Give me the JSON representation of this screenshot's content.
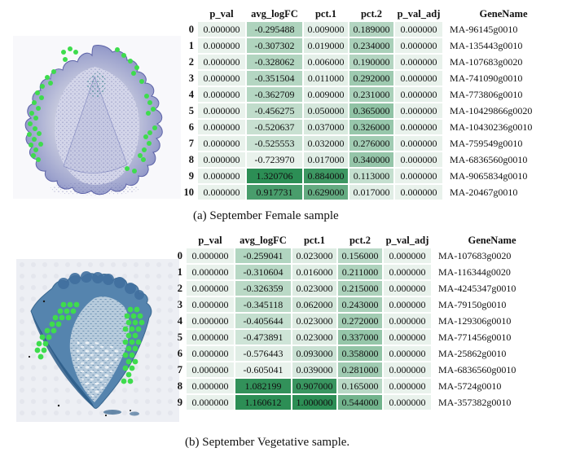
{
  "figure": {
    "columns": [
      "p_val",
      "avg_logFC",
      "pct.1",
      "pct.2",
      "p_val_adj",
      "GeneName"
    ],
    "colors": {
      "cell_light": "#e9f2ec",
      "cell_dark": "#2c8e55",
      "dot_green": "#3edc4d"
    },
    "panels": [
      {
        "id": "a",
        "caption": "(a) September Female sample",
        "rows": [
          [
            "0",
            "0.000000",
            "-0.295488",
            "0.009000",
            "0.189000",
            "0.000000",
            "MA-96145g0010"
          ],
          [
            "1",
            "0.000000",
            "-0.307302",
            "0.019000",
            "0.234000",
            "0.000000",
            "MA-135443g0010"
          ],
          [
            "2",
            "0.000000",
            "-0.328062",
            "0.006000",
            "0.190000",
            "0.000000",
            "MA-107683g0020"
          ],
          [
            "3",
            "0.000000",
            "-0.351504",
            "0.011000",
            "0.292000",
            "0.000000",
            "MA-741090g0010"
          ],
          [
            "4",
            "0.000000",
            "-0.362709",
            "0.009000",
            "0.231000",
            "0.000000",
            "MA-773806g0010"
          ],
          [
            "5",
            "0.000000",
            "-0.456275",
            "0.050000",
            "0.365000",
            "0.000000",
            "MA-10429866g0020"
          ],
          [
            "6",
            "0.000000",
            "-0.520637",
            "0.037000",
            "0.326000",
            "0.000000",
            "MA-10430236g0010"
          ],
          [
            "7",
            "0.000000",
            "-0.525553",
            "0.032000",
            "0.276000",
            "0.000000",
            "MA-759549g0010"
          ],
          [
            "8",
            "0.000000",
            "-0.723970",
            "0.017000",
            "0.340000",
            "0.000000",
            "MA-6836560g0010"
          ],
          [
            "9",
            "0.000000",
            "1.320706",
            "0.884000",
            "0.113000",
            "0.000000",
            "MA-9065834g0010"
          ],
          [
            "10",
            "0.000000",
            "0.917731",
            "0.629000",
            "0.017000",
            "0.000000",
            "MA-20467g0010"
          ]
        ],
        "image": {
          "dot_radius": 3,
          "dots": [
            [
              62,
              20
            ],
            [
              70,
              16
            ],
            [
              77,
              20
            ],
            [
              64,
              29
            ],
            [
              128,
              17
            ],
            [
              136,
              24
            ],
            [
              144,
              31
            ],
            [
              152,
              39
            ],
            [
              148,
              46
            ],
            [
              50,
              44
            ],
            [
              42,
              51
            ],
            [
              46,
              58
            ],
            [
              36,
              62
            ],
            [
              30,
              70
            ],
            [
              35,
              76
            ],
            [
              26,
              82
            ],
            [
              31,
              89
            ],
            [
              23,
              95
            ],
            [
              28,
              101
            ],
            [
              21,
              108
            ],
            [
              27,
              114
            ],
            [
              20,
              121
            ],
            [
              26,
              127
            ],
            [
              32,
              120
            ],
            [
              22,
              134
            ],
            [
              28,
              140
            ],
            [
              34,
              133
            ],
            [
              25,
              147
            ],
            [
              31,
              152
            ],
            [
              158,
              56
            ],
            [
              164,
              74
            ],
            [
              168,
              82
            ],
            [
              172,
              90
            ],
            [
              166,
              95
            ],
            [
              174,
              113
            ],
            [
              168,
              119
            ],
            [
              163,
              124
            ],
            [
              167,
              132
            ],
            [
              161,
              140
            ],
            [
              156,
              147
            ],
            [
              160,
              152
            ],
            [
              140,
              163
            ],
            [
              149,
              166
            ]
          ]
        }
      },
      {
        "id": "b",
        "caption": "(b) September Vegetative sample.",
        "rows": [
          [
            "0",
            "0.000000",
            "-0.259041",
            "0.023000",
            "0.156000",
            "0.000000",
            "MA-107683g0020"
          ],
          [
            "1",
            "0.000000",
            "-0.310604",
            "0.016000",
            "0.211000",
            "0.000000",
            "MA-116344g0020"
          ],
          [
            "2",
            "0.000000",
            "-0.326359",
            "0.023000",
            "0.215000",
            "0.000000",
            "MA-4245347g0010"
          ],
          [
            "3",
            "0.000000",
            "-0.345118",
            "0.062000",
            "0.243000",
            "0.000000",
            "MA-79150g0010"
          ],
          [
            "4",
            "0.000000",
            "-0.405644",
            "0.023000",
            "0.272000",
            "0.000000",
            "MA-129306g0010"
          ],
          [
            "5",
            "0.000000",
            "-0.473891",
            "0.023000",
            "0.337000",
            "0.000000",
            "MA-771456g0010"
          ],
          [
            "6",
            "0.000000",
            "-0.576443",
            "0.093000",
            "0.358000",
            "0.000000",
            "MA-25862g0010"
          ],
          [
            "7",
            "0.000000",
            "-0.605041",
            "0.039000",
            "0.281000",
            "0.000000",
            "MA-6836560g0010"
          ],
          [
            "8",
            "0.000000",
            "1.082199",
            "0.907000",
            "0.165000",
            "0.000000",
            "MA-5724g0010"
          ],
          [
            "9",
            "0.000000",
            "1.160612",
            "1.000000",
            "0.544000",
            "0.000000",
            "MA-357382g0010"
          ]
        ],
        "image": {
          "dot_radius": 3.4,
          "dots": [
            [
              58,
              56
            ],
            [
              66,
              56
            ],
            [
              74,
              56
            ],
            [
              54,
              64
            ],
            [
              62,
              64
            ],
            [
              70,
              64
            ],
            [
              48,
              72
            ],
            [
              56,
              72
            ],
            [
              64,
              72
            ],
            [
              44,
              80
            ],
            [
              52,
              80
            ],
            [
              38,
              88
            ],
            [
              46,
              88
            ],
            [
              32,
              96
            ],
            [
              40,
              96
            ],
            [
              28,
              104
            ],
            [
              36,
              104
            ],
            [
              26,
              112
            ],
            [
              34,
              112
            ],
            [
              30,
              120
            ],
            [
              140,
              62
            ],
            [
              148,
              62
            ],
            [
              136,
              70
            ],
            [
              144,
              70
            ],
            [
              152,
              70
            ],
            [
              138,
              78
            ],
            [
              146,
              78
            ],
            [
              154,
              78
            ],
            [
              134,
              86
            ],
            [
              142,
              86
            ],
            [
              150,
              86
            ],
            [
              138,
              94
            ],
            [
              146,
              94
            ],
            [
              134,
              102
            ],
            [
              142,
              102
            ],
            [
              150,
              102
            ],
            [
              138,
              110
            ],
            [
              146,
              110
            ],
            [
              134,
              118
            ],
            [
              142,
              118
            ],
            [
              138,
              126
            ],
            [
              146,
              126
            ],
            [
              134,
              134
            ],
            [
              142,
              134
            ],
            [
              138,
              142
            ],
            [
              132,
              150
            ],
            [
              140,
              150
            ]
          ]
        }
      }
    ]
  }
}
